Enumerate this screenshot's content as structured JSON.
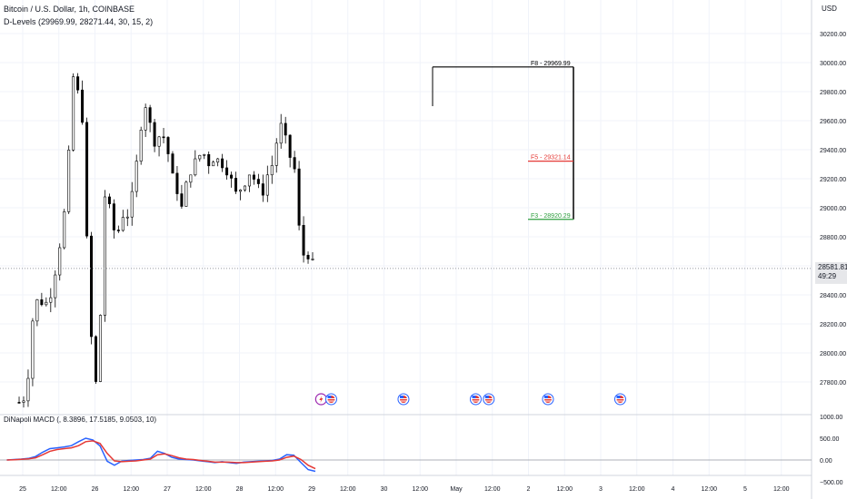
{
  "header": {
    "symbol_line": "Bitcoin / U.S. Dollar, 1h, COINBASE",
    "indicator_line": "D-Levels (29969.99, 28271.44, 30, 15, 2)"
  },
  "price_axis": {
    "currency": "USD",
    "ticks": [
      "30200.00",
      "30000.00",
      "29800.00",
      "29600.00",
      "29400.00",
      "29200.00",
      "29000.00",
      "28800.00",
      "28600.00",
      "28400.00",
      "28200.00",
      "28000.00",
      "27800.00"
    ],
    "last_price": "28581.81",
    "countdown": "49:29"
  },
  "macd": {
    "label": "DiNapoli MACD (, 8.3896, 17.5185, 9.0503, 10)",
    "ticks": [
      "1000.00",
      "500.00",
      "0.00",
      "−500.00"
    ],
    "colors": {
      "macd": "#2962ff",
      "signal": "#e53935"
    }
  },
  "time_axis": {
    "labels": [
      "25",
      "12:00",
      "26",
      "12:00",
      "27",
      "12:00",
      "28",
      "12:00",
      "29",
      "12:00",
      "30",
      "12:00",
      "May",
      "12:00",
      "2",
      "12:00",
      "3",
      "12:00",
      "4",
      "12:00",
      "5",
      "12:00"
    ]
  },
  "levels": [
    {
      "label": "F8 - 29969.99",
      "value": 29969.99,
      "color": "#000000"
    },
    {
      "label": "F5 - 29321.14",
      "value": 29321.14,
      "color": "#e53935"
    },
    {
      "label": "F3 - 28920.29",
      "value": 28920.29,
      "color": "#2e9e3e"
    }
  ],
  "events": [
    {
      "icon": "lightning-icon"
    },
    {
      "icon": "us-flag-icon"
    },
    {
      "icon": "us-flag-icon"
    },
    {
      "icon": "us-flag-icon"
    },
    {
      "icon": "us-flag-icon"
    },
    {
      "icon": "us-flag-icon"
    },
    {
      "icon": "us-flag-icon"
    }
  ],
  "chart_data": {
    "type": "candlestick",
    "title": "Bitcoin / U.S. Dollar, 1h, COINBASE",
    "ylim": [
      27550,
      30400
    ],
    "x": [
      "25",
      "26",
      "27",
      "28",
      "29",
      "30",
      "May"
    ],
    "close_path": [
      [
        24.95,
        27660
      ],
      [
        25.05,
        27700
      ],
      [
        25.1,
        28000
      ],
      [
        25.15,
        28300
      ],
      [
        25.22,
        28380
      ],
      [
        25.3,
        28320
      ],
      [
        25.4,
        28420
      ],
      [
        25.5,
        28700
      ],
      [
        25.6,
        29050
      ],
      [
        25.7,
        29900
      ],
      [
        25.75,
        29820
      ],
      [
        25.82,
        29680
      ],
      [
        25.92,
        28350
      ],
      [
        26.0,
        27700
      ],
      [
        26.08,
        28300
      ],
      [
        26.15,
        29250
      ],
      [
        26.22,
        28900
      ],
      [
        26.3,
        28800
      ],
      [
        26.38,
        28950
      ],
      [
        26.45,
        28950
      ],
      [
        26.52,
        29100
      ],
      [
        26.6,
        29400
      ],
      [
        26.68,
        29750
      ],
      [
        26.75,
        29600
      ],
      [
        26.82,
        29450
      ],
      [
        26.9,
        29500
      ],
      [
        26.98,
        29480
      ],
      [
        27.05,
        29250
      ],
      [
        27.12,
        29150
      ],
      [
        27.2,
        29000
      ],
      [
        27.28,
        29200
      ],
      [
        27.35,
        29280
      ],
      [
        27.42,
        29350
      ],
      [
        27.5,
        29380
      ],
      [
        27.58,
        29300
      ],
      [
        27.66,
        29350
      ],
      [
        27.72,
        29320
      ],
      [
        27.8,
        29280
      ],
      [
        27.88,
        29200
      ],
      [
        27.95,
        29100
      ],
      [
        28.05,
        29150
      ],
      [
        28.15,
        29250
      ],
      [
        28.25,
        29150
      ],
      [
        28.32,
        29100
      ],
      [
        28.4,
        29250
      ],
      [
        28.48,
        29320
      ],
      [
        28.55,
        29600
      ],
      [
        28.62,
        29500
      ],
      [
        28.68,
        29400
      ],
      [
        28.72,
        29300
      ],
      [
        28.78,
        29250
      ],
      [
        28.85,
        28650
      ],
      [
        28.92,
        28700
      ],
      [
        29.0,
        28630
      ],
      [
        29.05,
        28581.81
      ]
    ],
    "macd_series": [
      {
        "name": "MACD",
        "x_start": 24.78,
        "x_end": 29.05,
        "values": [
          0,
          10,
          20,
          35,
          80,
          180,
          260,
          280,
          300,
          330,
          420,
          500,
          460,
          320,
          -30,
          -120,
          -30,
          -10,
          0,
          10,
          40,
          200,
          150,
          60,
          20,
          10,
          0,
          -20,
          -40,
          -60,
          -40,
          -60,
          -80,
          -50,
          -40,
          -30,
          -20,
          -10,
          20,
          120,
          110,
          -60,
          -220,
          -260
        ]
      },
      {
        "name": "Signal",
        "x_start": 24.78,
        "x_end": 29.05,
        "values": [
          0,
          5,
          15,
          25,
          50,
          120,
          200,
          240,
          260,
          280,
          330,
          420,
          440,
          380,
          150,
          -20,
          -40,
          -30,
          -20,
          0,
          20,
          120,
          140,
          100,
          50,
          20,
          10,
          -10,
          -30,
          -50,
          -50,
          -50,
          -60,
          -60,
          -50,
          -40,
          -30,
          -20,
          0,
          60,
          90,
          10,
          -120,
          -200
        ]
      }
    ]
  }
}
